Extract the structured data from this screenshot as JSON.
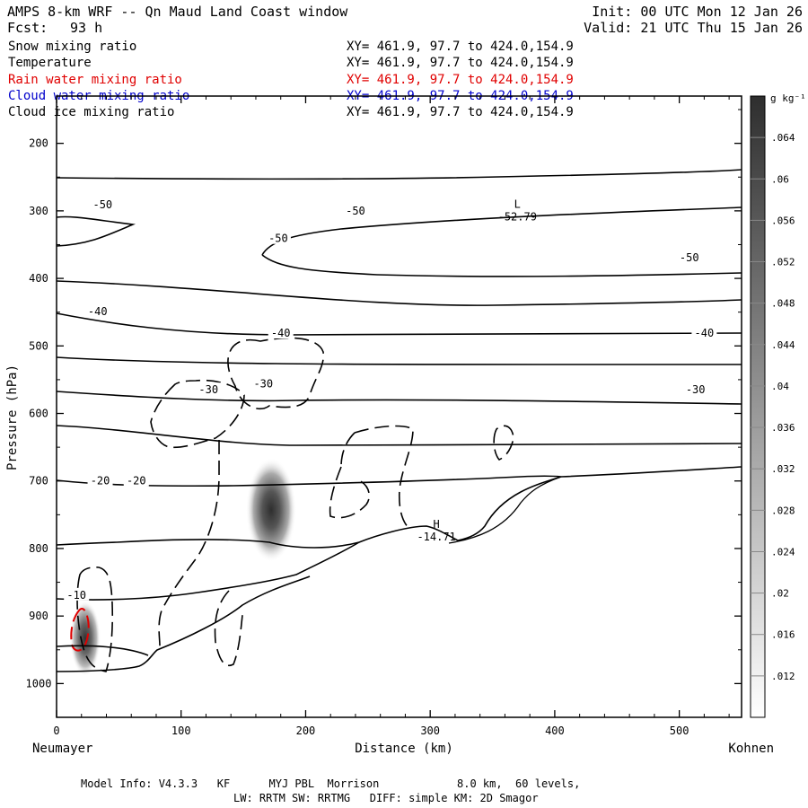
{
  "header": {
    "title": "AMPS 8-km WRF -- Qn Maud Land Coast window",
    "fcst_label": "Fcst:",
    "fcst_value": "93 h",
    "init": "Init: 00 UTC Mon 12 Jan 26",
    "valid": "Valid: 21 UTC Thu 15 Jan 26"
  },
  "fields": [
    {
      "name": "Snow mixing ratio",
      "xy": "XY= 461.9, 97.7 to 424.0,154.9",
      "color": "#000000"
    },
    {
      "name": "Temperature",
      "xy": "XY= 461.9, 97.7 to 424.0,154.9",
      "color": "#000000"
    },
    {
      "name": "Rain water mixing ratio",
      "xy": "XY= 461.9, 97.7 to 424.0,154.9",
      "color": "#e00000"
    },
    {
      "name": "Cloud water mixing ratio",
      "xy": "XY= 461.9, 97.7 to 424.0,154.9",
      "color": "#0000cc"
    },
    {
      "name": "Cloud ice mixing ratio",
      "xy": "XY= 461.9, 97.7 to 424.0,154.9",
      "color": "#000000"
    }
  ],
  "footer": {
    "line1": "Model Info: V4.3.3   KF      MYJ PBL  Morrison            8.0 km,  60 levels,",
    "line2": "LW: RRTM SW: RRTMG   DIFF: simple KM: 2D Smagor"
  },
  "chart_data": {
    "type": "contour cross-section",
    "xlabel": "Distance (km)",
    "ylabel": "Pressure (hPa)",
    "x_left_label": "Neumayer",
    "x_right_label": "Kohnen",
    "xlim": [
      0,
      550
    ],
    "ylim": [
      1050,
      130
    ],
    "x_ticks": [
      0,
      100,
      200,
      300,
      400,
      500
    ],
    "y_ticks": [
      200,
      300,
      400,
      500,
      600,
      700,
      800,
      900,
      1000
    ],
    "colorbar": {
      "unit": "g kg⁻¹",
      "ticks": [
        ".064",
        ".06",
        ".056",
        ".052",
        ".048",
        ".044",
        ".04",
        ".036",
        ".032",
        ".028",
        ".024",
        ".02",
        ".016",
        ".012"
      ],
      "tick_values": [
        0.064,
        0.06,
        0.056,
        0.052,
        0.048,
        0.044,
        0.04,
        0.036,
        0.032,
        0.028,
        0.024,
        0.02,
        0.016,
        0.012
      ],
      "range": [
        0.008,
        0.068
      ],
      "color_min": "#ffffff",
      "color_max": "#2e2e2e"
    },
    "temperature_labels": [
      {
        "text": "-50",
        "x": 37,
        "p": 291
      },
      {
        "text": "-50",
        "x": 240,
        "p": 300
      },
      {
        "text": "-50",
        "x": 178,
        "p": 341
      },
      {
        "text": "-50",
        "x": 508,
        "p": 369
      },
      {
        "text": "-40",
        "x": 33,
        "p": 449
      },
      {
        "text": "-40",
        "x": 180,
        "p": 481
      },
      {
        "text": "-40",
        "x": 520,
        "p": 481
      },
      {
        "text": "-30",
        "x": 122,
        "p": 565
      },
      {
        "text": "-30",
        "x": 166,
        "p": 556
      },
      {
        "text": "-30",
        "x": 513,
        "p": 565
      },
      {
        "text": "-20",
        "x": 35,
        "p": 700
      },
      {
        "text": "-20",
        "x": 64,
        "p": 700
      },
      {
        "text": "-10",
        "x": 16,
        "p": 869
      }
    ],
    "extrema": [
      {
        "type": "L",
        "value": "-52.79",
        "x": 370,
        "p": 306
      },
      {
        "type": "H",
        "value": "-14.71",
        "x": 305,
        "p": 780
      }
    ],
    "shading_maxima": [
      {
        "x": 172,
        "p": 730,
        "value": 0.064
      },
      {
        "x": 24,
        "p": 930,
        "value": 0.06
      }
    ]
  }
}
